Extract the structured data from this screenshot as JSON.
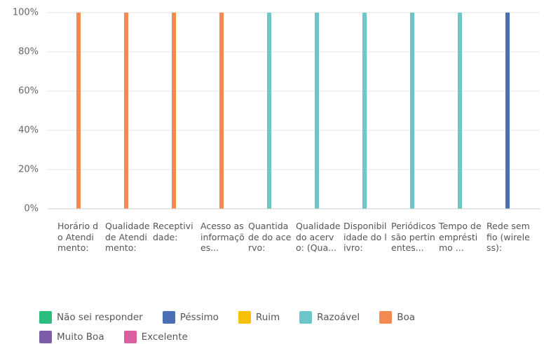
{
  "chart_data": {
    "type": "bar",
    "stacked": true,
    "categories": [
      "Horário do Atendimento:",
      "Qualidade de Atendimento:",
      "Receptividade:",
      "Acesso as informações...",
      "Quantidade do acervo:",
      "Qualidade do acervo: (Qua...",
      "Disponibilidade do livro:",
      "Periódicos são pertinentes...",
      "Tempo de empréstimo ...",
      "Rede sem fio (wireless):"
    ],
    "series": [
      {
        "name": "Não sei responder",
        "color": "#2bbd7e",
        "values": [
          0,
          0,
          0,
          0,
          0,
          0,
          0,
          0,
          0,
          0
        ]
      },
      {
        "name": "Péssimo",
        "color": "#4a6fb5",
        "values": [
          0,
          0,
          0,
          0,
          0,
          0,
          0,
          0,
          0,
          100
        ]
      },
      {
        "name": "Ruim",
        "color": "#f5c10b",
        "values": [
          0,
          0,
          0,
          0,
          0,
          0,
          0,
          0,
          0,
          0
        ]
      },
      {
        "name": "Razoável",
        "color": "#6cc6c9",
        "values": [
          0,
          0,
          0,
          0,
          100,
          100,
          100,
          100,
          100,
          0
        ]
      },
      {
        "name": "Boa",
        "color": "#f58a50",
        "values": [
          100,
          100,
          100,
          100,
          0,
          0,
          0,
          0,
          0,
          0
        ]
      },
      {
        "name": "Muito Boa",
        "color": "#7b5ea7",
        "values": [
          0,
          0,
          0,
          0,
          0,
          0,
          0,
          0,
          0,
          0
        ]
      },
      {
        "name": "Excelente",
        "color": "#d95f9e",
        "values": [
          0,
          0,
          0,
          0,
          0,
          0,
          0,
          0,
          0,
          0
        ]
      }
    ],
    "ylim": [
      0,
      100
    ],
    "yticks": [
      {
        "value": 0,
        "label": "0%"
      },
      {
        "value": 20,
        "label": "20%"
      },
      {
        "value": 40,
        "label": "40%"
      },
      {
        "value": 60,
        "label": "60%"
      },
      {
        "value": 80,
        "label": "80%"
      },
      {
        "value": 100,
        "label": "100%"
      }
    ],
    "grid": true
  }
}
